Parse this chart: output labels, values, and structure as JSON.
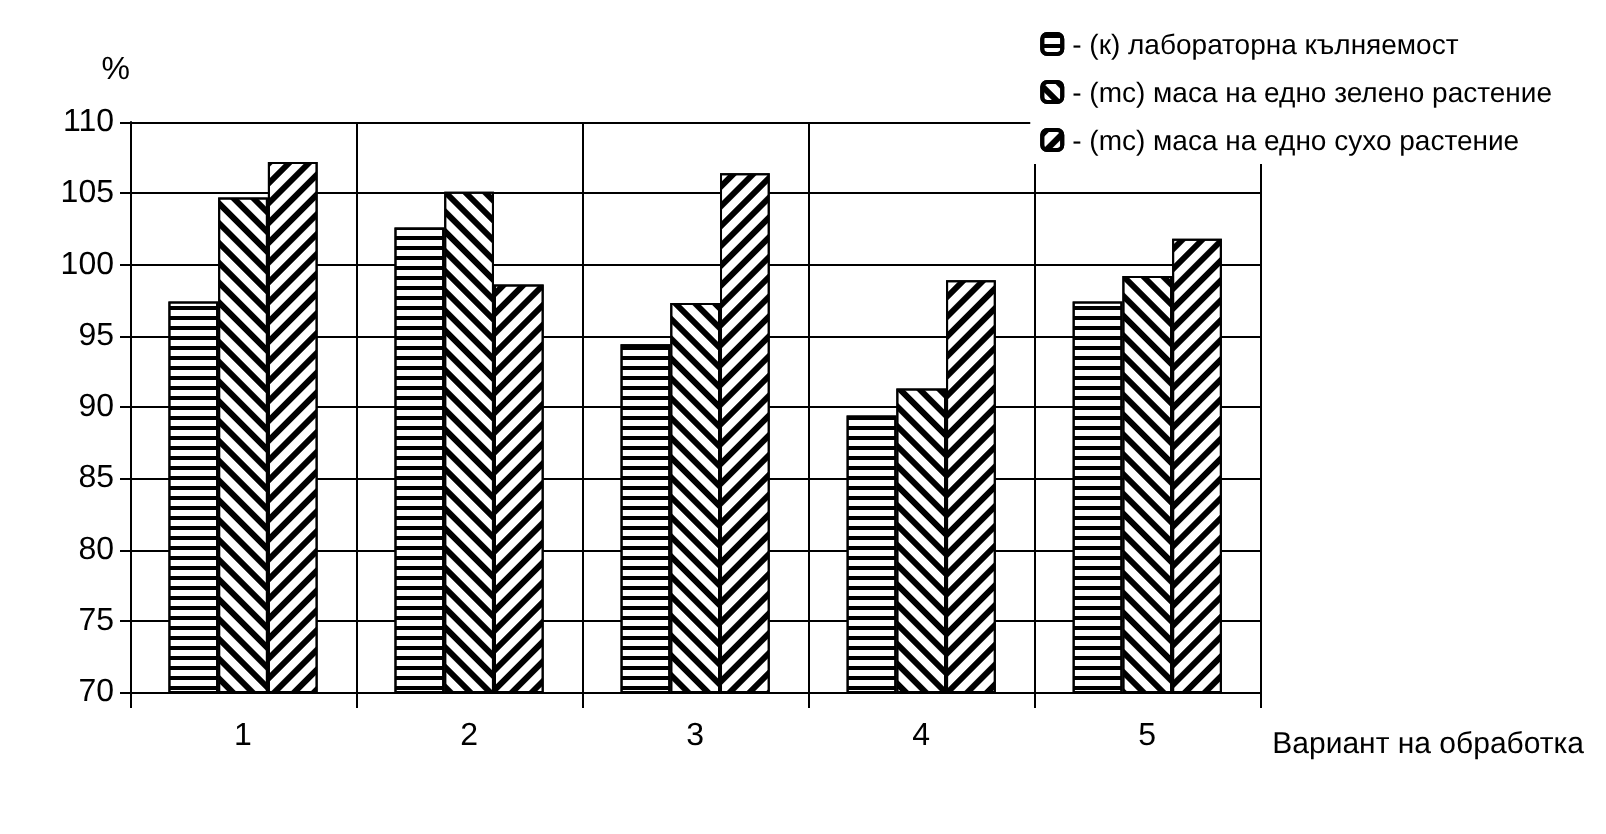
{
  "chart_data": {
    "type": "bar",
    "ylabel": "%",
    "xlabel": "Вариант на обработка",
    "categories": [
      "1",
      "2",
      "3",
      "4",
      "5"
    ],
    "series": [
      {
        "name": "- (к) лабораторна кълняемост",
        "color": "#000000",
        "values": [
          97.4,
          102.6,
          94.4,
          89.4,
          97.4
        ]
      },
      {
        "name": "- (mc) маса на едно зелено растение",
        "color": "#000000",
        "values": [
          104.7,
          105.1,
          97.3,
          91.3,
          99.2
        ]
      },
      {
        "name": "- (mc) маса на едно сухо растение",
        "color": "#000000",
        "values": [
          107.2,
          98.6,
          106.4,
          98.9,
          101.8
        ]
      }
    ],
    "ylim": [
      70,
      110
    ],
    "yticks": [
      70,
      75,
      80,
      85,
      90,
      95,
      100,
      105,
      110
    ],
    "grid": true,
    "legend": "top right"
  }
}
